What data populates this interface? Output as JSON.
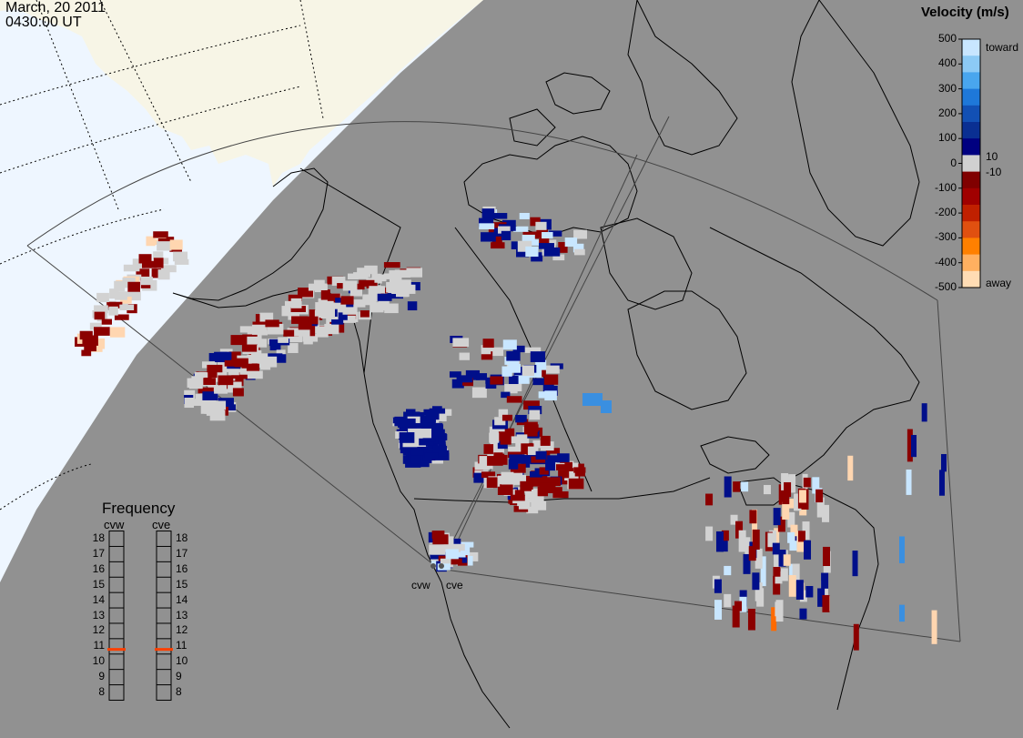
{
  "header": {
    "date": "March, 20 2011",
    "time": "0430:00 UT"
  },
  "legend": {
    "title": "Velocity (m/s)",
    "ticks": [
      "500",
      "400",
      "300",
      "200",
      "100",
      "0",
      "-100",
      "-200",
      "-300",
      "-400",
      "-500"
    ],
    "low_label": "10",
    "high_label": "-10",
    "toward_label": "toward",
    "away_label": "away",
    "colors": [
      "#c8e6ff",
      "#8ccaf5",
      "#49a6ee",
      "#1e78d9",
      "#1250b4",
      "#0a2f92",
      "#000080",
      "#d0d0d0",
      "#800000",
      "#a00000",
      "#c02000",
      "#e05010",
      "#ff8000",
      "#ffb060",
      "#ffdcb4"
    ]
  },
  "frequency": {
    "title": "Frequency",
    "radars": [
      "cvw",
      "cve"
    ],
    "levels": [
      "18",
      "17",
      "16",
      "15",
      "14",
      "13",
      "12",
      "11",
      "10",
      "9",
      "8"
    ],
    "selected": {
      "cvw": 10.8,
      "cve": 10.8
    },
    "marker_color": "#ff4000"
  },
  "sites": {
    "west_label": "cvw",
    "east_label": "cve"
  },
  "colors": {
    "night": "#919191",
    "day_ocean": "#eef6ff",
    "day_land": "#f7f5e6",
    "ground_scatter": "#d2d2d2"
  }
}
